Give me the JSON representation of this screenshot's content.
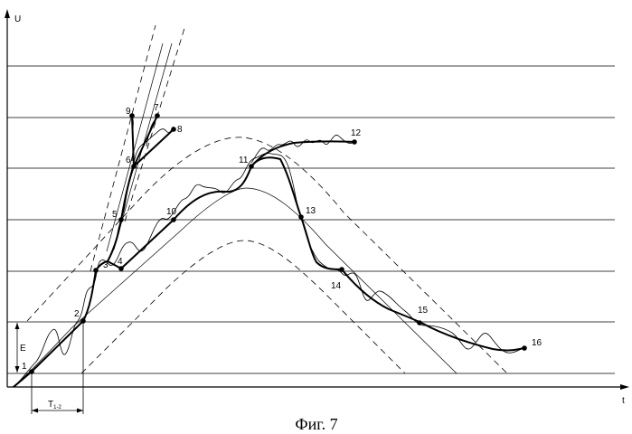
{
  "axes": {
    "y_label": "U",
    "x_label": "t"
  },
  "annotations": {
    "e_label": "E",
    "t_label": "T",
    "t_sub": "1-2"
  },
  "caption": "Фиг. 7",
  "points": [
    {
      "n": "1"
    },
    {
      "n": "2"
    },
    {
      "n": "3"
    },
    {
      "n": "4"
    },
    {
      "n": "5"
    },
    {
      "n": "6"
    },
    {
      "n": "7"
    },
    {
      "n": "8"
    },
    {
      "n": "9"
    },
    {
      "n": "10"
    },
    {
      "n": "11"
    },
    {
      "n": "12"
    },
    {
      "n": "13"
    },
    {
      "n": "14"
    },
    {
      "n": "15"
    },
    {
      "n": "16"
    }
  ]
}
